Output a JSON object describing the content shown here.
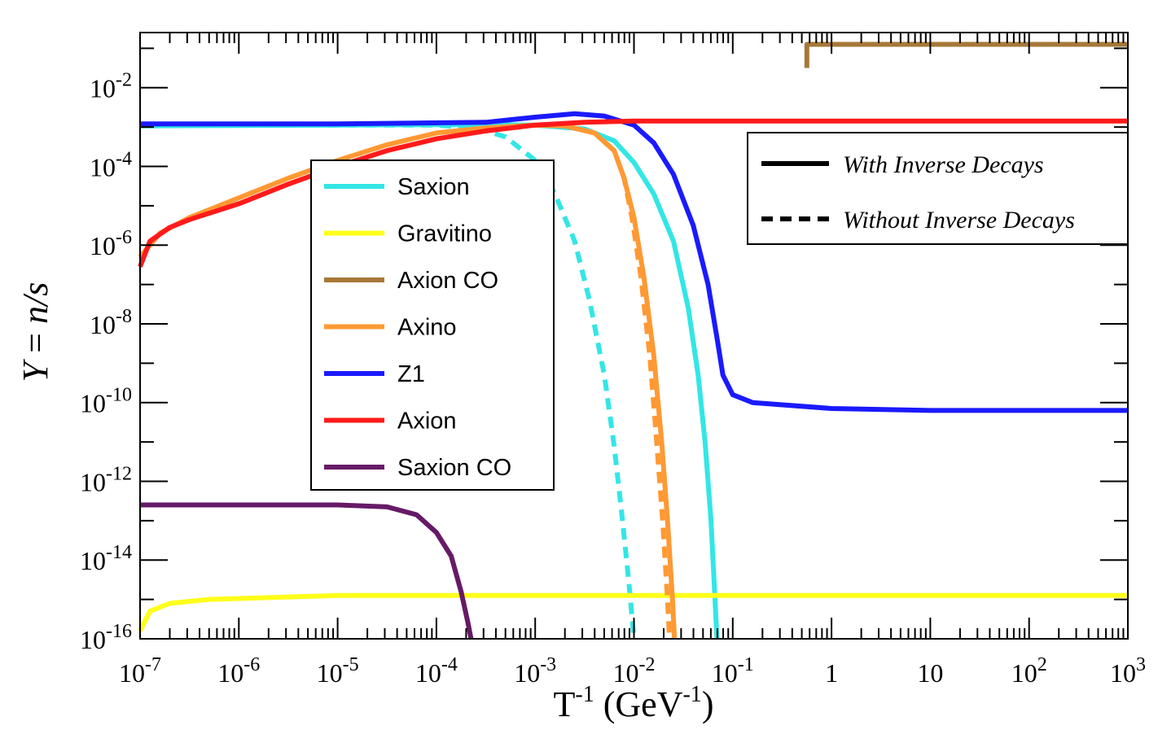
{
  "chart_data": {
    "type": "line",
    "xscale": "log",
    "yscale": "log",
    "xlabel": "T-1 (GeV-1)",
    "ylabel": "Y = n/s",
    "xlim_log10": [
      -7,
      3
    ],
    "ylim_log10": [
      -16,
      -0.6
    ],
    "x_ticks": [
      {
        "exp": -7,
        "base": "10",
        "sup": "-7"
      },
      {
        "exp": -6,
        "base": "10",
        "sup": "-6"
      },
      {
        "exp": -5,
        "base": "10",
        "sup": "-5"
      },
      {
        "exp": -4,
        "base": "10",
        "sup": "-4"
      },
      {
        "exp": -3,
        "base": "10",
        "sup": "-3"
      },
      {
        "exp": -2,
        "base": "10",
        "sup": "-2"
      },
      {
        "exp": -1,
        "base": "10",
        "sup": "-1"
      },
      {
        "exp": 0,
        "base": "1",
        "sup": ""
      },
      {
        "exp": 1,
        "base": "10",
        "sup": ""
      },
      {
        "exp": 2,
        "base": "10",
        "sup": "2"
      },
      {
        "exp": 3,
        "base": "10",
        "sup": "3"
      }
    ],
    "y_ticks": [
      {
        "exp": -2,
        "base": "10",
        "sup": "-2"
      },
      {
        "exp": -4,
        "base": "10",
        "sup": "-4"
      },
      {
        "exp": -6,
        "base": "10",
        "sup": "-6"
      },
      {
        "exp": -8,
        "base": "10",
        "sup": "-8"
      },
      {
        "exp": -10,
        "base": "10",
        "sup": "-10"
      },
      {
        "exp": -12,
        "base": "10",
        "sup": "-12"
      },
      {
        "exp": -14,
        "base": "10",
        "sup": "-14"
      },
      {
        "exp": -16,
        "base": "10",
        "sup": "-16"
      }
    ],
    "series": [
      {
        "name": "Saxion",
        "color": "#33e6e6",
        "style": "solid",
        "points": [
          [
            -7,
            -2.97
          ],
          [
            -5,
            -2.95
          ],
          [
            -4,
            -2.94
          ],
          [
            -3.5,
            -2.94
          ],
          [
            -3,
            -2.95
          ],
          [
            -2.5,
            -3.05
          ],
          [
            -2.2,
            -3.35
          ],
          [
            -2,
            -3.9
          ],
          [
            -1.8,
            -4.7
          ],
          [
            -1.6,
            -5.9
          ],
          [
            -1.45,
            -7.6
          ],
          [
            -1.35,
            -9.3
          ],
          [
            -1.28,
            -11.0
          ],
          [
            -1.22,
            -13.0
          ],
          [
            -1.18,
            -15.0
          ],
          [
            -1.16,
            -16.0
          ]
        ]
      },
      {
        "name": "Saxion",
        "color": "#33e6e6",
        "style": "dashed",
        "points": [
          [
            -7,
            -2.95
          ],
          [
            -4,
            -2.95
          ],
          [
            -3.6,
            -3.02
          ],
          [
            -3.3,
            -3.25
          ],
          [
            -3.0,
            -3.85
          ],
          [
            -2.8,
            -4.7
          ],
          [
            -2.6,
            -5.9
          ],
          [
            -2.45,
            -7.4
          ],
          [
            -2.3,
            -9.3
          ],
          [
            -2.2,
            -11.1
          ],
          [
            -2.12,
            -12.9
          ],
          [
            -2.05,
            -14.6
          ],
          [
            -2.0,
            -16.0
          ]
        ]
      },
      {
        "name": "Gravitino",
        "color": "#ffff1a",
        "style": "solid",
        "points": [
          [
            -7,
            -15.8
          ],
          [
            -6.9,
            -15.3
          ],
          [
            -6.7,
            -15.1
          ],
          [
            -6.3,
            -15.0
          ],
          [
            -5,
            -14.9
          ],
          [
            -3,
            -14.9
          ],
          [
            0,
            -14.9
          ],
          [
            3,
            -14.9
          ]
        ]
      },
      {
        "name": "Axion CO",
        "color": "#a67838",
        "style": "solid",
        "points": [
          [
            -0.25,
            -1.5
          ],
          [
            -0.25,
            -0.9
          ],
          [
            3,
            -0.9
          ]
        ]
      },
      {
        "name": "Axino",
        "color": "#ff9933",
        "style": "solid",
        "points": [
          [
            -7,
            -6.3
          ],
          [
            -6.8,
            -5.7
          ],
          [
            -6.5,
            -5.3
          ],
          [
            -6,
            -4.8
          ],
          [
            -5.5,
            -4.3
          ],
          [
            -5,
            -3.85
          ],
          [
            -4.5,
            -3.45
          ],
          [
            -4,
            -3.15
          ],
          [
            -3.5,
            -3.02
          ],
          [
            -3,
            -2.95
          ],
          [
            -2.7,
            -2.97
          ],
          [
            -2.4,
            -3.15
          ],
          [
            -2.2,
            -3.6
          ],
          [
            -2.1,
            -4.3
          ],
          [
            -2.0,
            -5.3
          ],
          [
            -1.9,
            -6.8
          ],
          [
            -1.8,
            -8.8
          ],
          [
            -1.72,
            -11.0
          ],
          [
            -1.66,
            -13.0
          ],
          [
            -1.61,
            -15.0
          ],
          [
            -1.59,
            -16.0
          ]
        ]
      },
      {
        "name": "Axino",
        "color": "#ff9933",
        "style": "dashed",
        "points": [
          [
            -3,
            -2.95
          ],
          [
            -2.7,
            -2.97
          ],
          [
            -2.4,
            -3.15
          ],
          [
            -2.2,
            -3.6
          ],
          [
            -2.1,
            -4.3
          ],
          [
            -2.02,
            -5.3
          ],
          [
            -1.93,
            -6.8
          ],
          [
            -1.84,
            -8.8
          ],
          [
            -1.77,
            -11.0
          ],
          [
            -1.71,
            -13.0
          ],
          [
            -1.66,
            -15.0
          ],
          [
            -1.64,
            -16.0
          ]
        ]
      },
      {
        "name": "Z1",
        "color": "#1a1aff",
        "style": "solid",
        "points": [
          [
            -7,
            -2.92
          ],
          [
            -5,
            -2.92
          ],
          [
            -3.5,
            -2.88
          ],
          [
            -3,
            -2.75
          ],
          [
            -2.6,
            -2.66
          ],
          [
            -2.3,
            -2.72
          ],
          [
            -2,
            -2.95
          ],
          [
            -1.8,
            -3.4
          ],
          [
            -1.6,
            -4.2
          ],
          [
            -1.4,
            -5.5
          ],
          [
            -1.25,
            -7.0
          ],
          [
            -1.15,
            -8.5
          ],
          [
            -1.1,
            -9.3
          ],
          [
            -1.0,
            -9.8
          ],
          [
            -0.8,
            -10.0
          ],
          [
            0,
            -10.15
          ],
          [
            1,
            -10.2
          ],
          [
            3,
            -10.2
          ]
        ]
      },
      {
        "name": "Axion",
        "color": "#ff1a1a",
        "style": "solid",
        "points": [
          [
            -7,
            -6.55
          ],
          [
            -6.9,
            -5.9
          ],
          [
            -6.7,
            -5.55
          ],
          [
            -6.5,
            -5.35
          ],
          [
            -6,
            -4.95
          ],
          [
            -5.5,
            -4.45
          ],
          [
            -5,
            -4.0
          ],
          [
            -4.5,
            -3.6
          ],
          [
            -4,
            -3.3
          ],
          [
            -3.5,
            -3.1
          ],
          [
            -3,
            -2.95
          ],
          [
            -2.5,
            -2.88
          ],
          [
            -2,
            -2.85
          ],
          [
            -1,
            -2.85
          ],
          [
            0,
            -2.85
          ],
          [
            1,
            -2.85
          ],
          [
            3,
            -2.85
          ]
        ]
      },
      {
        "name": "Saxion CO",
        "color": "#661a66",
        "style": "solid",
        "points": [
          [
            -7,
            -12.6
          ],
          [
            -5,
            -12.6
          ],
          [
            -4.5,
            -12.65
          ],
          [
            -4.2,
            -12.85
          ],
          [
            -4.0,
            -13.3
          ],
          [
            -3.85,
            -13.9
          ],
          [
            -3.75,
            -14.8
          ],
          [
            -3.68,
            -15.6
          ],
          [
            -3.65,
            -16.0
          ]
        ]
      }
    ],
    "legend": [
      {
        "name": "Saxion",
        "color": "#33e6e6"
      },
      {
        "name": "Gravitino",
        "color": "#ffff1a"
      },
      {
        "name": "Axion CO",
        "color": "#a67838"
      },
      {
        "name": "Axino",
        "color": "#ff9933"
      },
      {
        "name": "Z1",
        "color": "#1a1aff"
      },
      {
        "name": "Axion",
        "color": "#ff1a1a"
      },
      {
        "name": "Saxion CO",
        "color": "#661a66"
      }
    ],
    "legend_styles": [
      {
        "label": "With Inverse Decays",
        "style": "solid"
      },
      {
        "label": "Without Inverse Decays",
        "style": "dashed"
      }
    ]
  }
}
